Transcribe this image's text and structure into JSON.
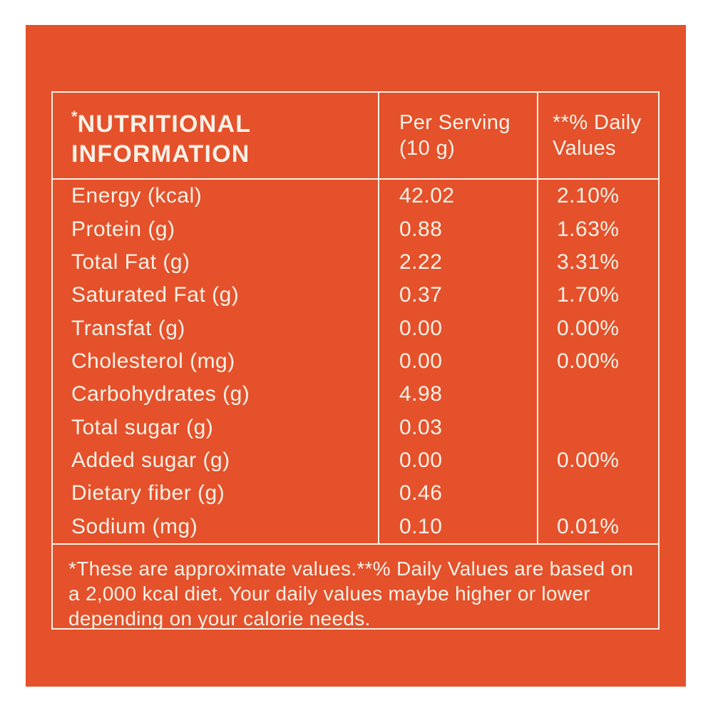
{
  "palette": {
    "page_background": "#ffffff",
    "panel_background": "#e4512b",
    "text_and_borders": "#f8f1e7"
  },
  "table": {
    "header": {
      "title_mark": "*",
      "title": "NUTRITIONAL INFORMATION",
      "per_serving_label": "Per Serving (10 g)",
      "daily_values_label": "**% Daily Values"
    },
    "rows": [
      {
        "label": "Energy (kcal)",
        "per_serving": "42.02",
        "daily_value": "2.10%"
      },
      {
        "label": "Protein (g)",
        "per_serving": "0.88",
        "daily_value": "1.63%"
      },
      {
        "label": "Total Fat (g)",
        "per_serving": "2.22",
        "daily_value": "3.31%"
      },
      {
        "label": "Saturated Fat (g)",
        "per_serving": "0.37",
        "daily_value": "1.70%"
      },
      {
        "label": "Transfat (g)",
        "per_serving": "0.00",
        "daily_value": "0.00%"
      },
      {
        "label": "Cholesterol (mg)",
        "per_serving": "0.00",
        "daily_value": "0.00%"
      },
      {
        "label": "Carbohydrates (g)",
        "per_serving": "4.98",
        "daily_value": ""
      },
      {
        "label": "Total sugar (g)",
        "per_serving": "0.03",
        "daily_value": ""
      },
      {
        "label": "Added sugar (g)",
        "per_serving": "0.00",
        "daily_value": "0.00%"
      },
      {
        "label": "Dietary fiber (g)",
        "per_serving": "0.46",
        "daily_value": ""
      },
      {
        "label": "Sodium (mg)",
        "per_serving": "0.10",
        "daily_value": "0.01%"
      }
    ],
    "footnote": "*These are approximate values.**% Daily Values are based on a 2,000 kcal diet. Your daily values maybe higher or lower depending on your calorie needs."
  }
}
